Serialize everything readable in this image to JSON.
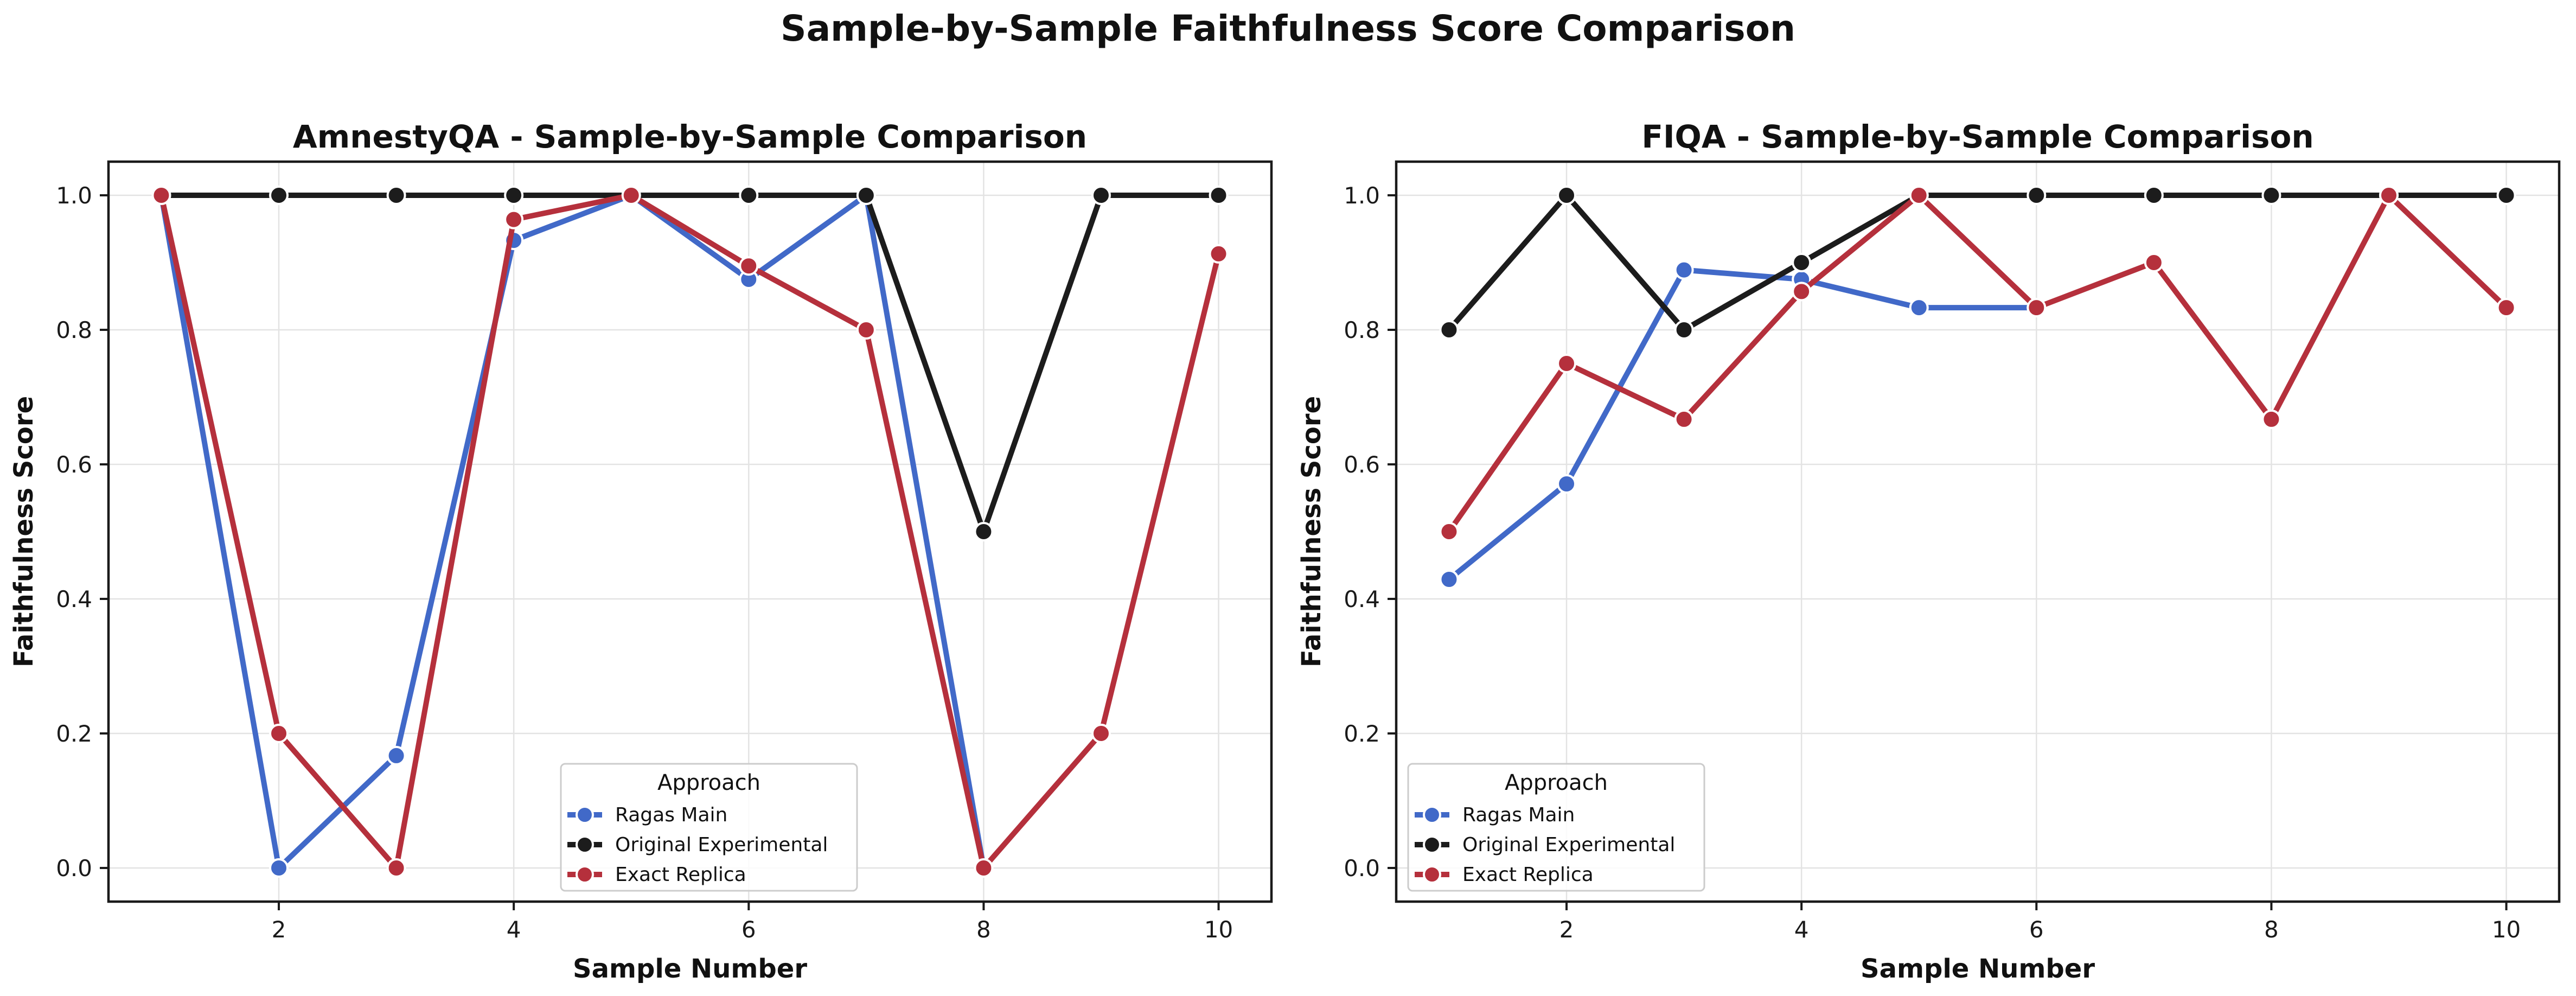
{
  "figure": {
    "title": "Sample-by-Sample Faithfulness Score Comparison"
  },
  "legend_title": "Approach",
  "series_styles": [
    {
      "name": "Ragas Main",
      "color": "#4169C8"
    },
    {
      "name": "Original Experimental",
      "color": "#1C1C1C"
    },
    {
      "name": "Exact Replica",
      "color": "#B5303C"
    }
  ],
  "chart_data": [
    {
      "type": "line",
      "title": "AmnestyQA - Sample-by-Sample Comparison",
      "xlabel": "Sample Number",
      "ylabel": "Faithfulness Score",
      "xlim": [
        0.55,
        10.45
      ],
      "ylim": [
        -0.05,
        1.05
      ],
      "xticks": [
        2,
        4,
        6,
        8,
        10
      ],
      "yticks": [
        0.0,
        0.2,
        0.4,
        0.6,
        0.8,
        1.0
      ],
      "ytick_labels": [
        "0.0",
        "0.2",
        "0.4",
        "0.6",
        "0.8",
        "1.0"
      ],
      "grid": true,
      "legend_position": "lower center",
      "x": [
        1,
        2,
        3,
        4,
        5,
        6,
        7,
        8,
        9,
        10
      ],
      "series": [
        {
          "name": "Ragas Main",
          "x": [
            1,
            2,
            3,
            4,
            5,
            6,
            7,
            8
          ],
          "values": [
            1.0,
            0.0,
            0.167,
            0.933,
            1.0,
            0.875,
            1.0,
            0.0
          ]
        },
        {
          "name": "Original Experimental",
          "x": [
            1,
            2,
            3,
            4,
            5,
            6,
            7,
            8,
            9,
            10
          ],
          "values": [
            1.0,
            1.0,
            1.0,
            1.0,
            1.0,
            1.0,
            1.0,
            0.5,
            1.0,
            1.0
          ]
        },
        {
          "name": "Exact Replica",
          "x": [
            1,
            2,
            3,
            4,
            5,
            6,
            7,
            8,
            9,
            10
          ],
          "values": [
            1.0,
            0.2,
            0.0,
            0.964,
            1.0,
            0.895,
            0.8,
            0.0,
            0.2,
            0.913
          ]
        }
      ]
    },
    {
      "type": "line",
      "title": "FIQA - Sample-by-Sample Comparison",
      "xlabel": "Sample Number",
      "ylabel": "Faithfulness Score",
      "xlim": [
        0.55,
        10.45
      ],
      "ylim": [
        -0.05,
        1.05
      ],
      "xticks": [
        2,
        4,
        6,
        8,
        10
      ],
      "yticks": [
        0.0,
        0.2,
        0.4,
        0.6,
        0.8,
        1.0
      ],
      "ytick_labels": [
        "0.0",
        "0.2",
        "0.4",
        "0.6",
        "0.8",
        "1.0"
      ],
      "grid": true,
      "legend_position": "lower left",
      "x": [
        1,
        2,
        3,
        4,
        5,
        6,
        7,
        8,
        9,
        10
      ],
      "series": [
        {
          "name": "Ragas Main",
          "x": [
            1,
            2,
            3,
            4,
            5,
            6
          ],
          "values": [
            0.429,
            0.571,
            0.889,
            0.875,
            0.833,
            0.833
          ]
        },
        {
          "name": "Original Experimental",
          "x": [
            1,
            2,
            3,
            4,
            5,
            6,
            7,
            8,
            9,
            10
          ],
          "values": [
            0.8,
            1.0,
            0.8,
            0.9,
            1.0,
            1.0,
            1.0,
            1.0,
            1.0,
            1.0
          ]
        },
        {
          "name": "Exact Replica",
          "x": [
            1,
            2,
            3,
            4,
            5,
            6,
            7,
            8,
            9,
            10
          ],
          "values": [
            0.5,
            0.75,
            0.667,
            0.857,
            1.0,
            0.833,
            0.9,
            0.667,
            1.0,
            0.833
          ]
        }
      ]
    }
  ]
}
